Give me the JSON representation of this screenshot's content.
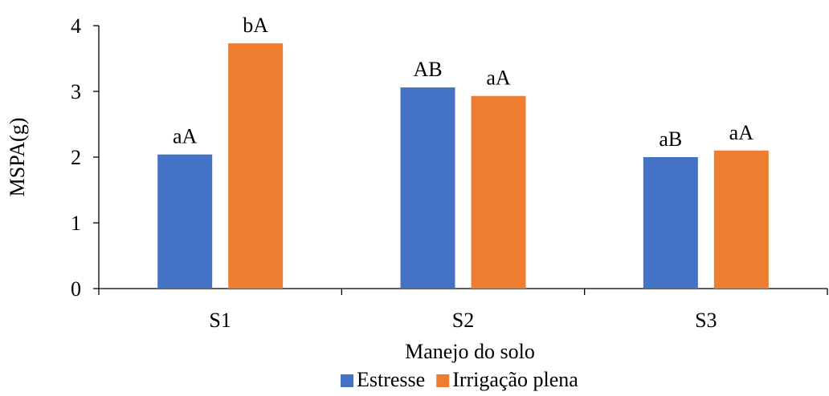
{
  "chart_data": {
    "type": "bar",
    "categories": [
      "S1",
      "S2",
      "S3"
    ],
    "series": [
      {
        "name": "Estresse",
        "color": "#4472C4",
        "values": [
          2.04,
          3.06,
          2.0
        ],
        "labels": [
          "aA",
          "AB",
          "aB"
        ]
      },
      {
        "name": "Irrigação plena",
        "color": "#ED7D31",
        "values": [
          3.73,
          2.93,
          2.1
        ],
        "labels": [
          "bA",
          "aA",
          "aA"
        ]
      }
    ],
    "xlabel": "Manejo do solo",
    "ylabel": "MSPA(g)",
    "ylim": [
      0,
      4
    ],
    "yticks": [
      "0",
      "1",
      "2",
      "3",
      "4"
    ],
    "grid": false,
    "legend_position": "bottom"
  }
}
